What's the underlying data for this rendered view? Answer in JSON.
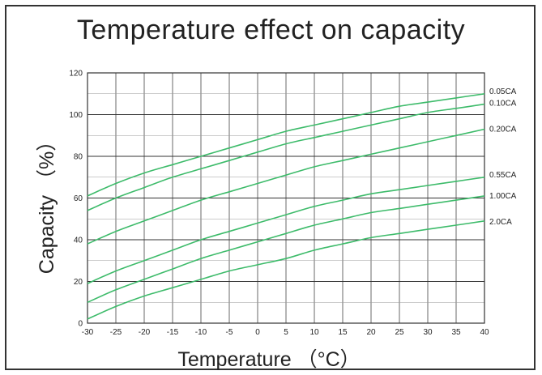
{
  "chart_data": {
    "type": "line",
    "title": "Temperature effect on capacity",
    "xlabel": "Temperature （°C）",
    "ylabel": "Capacity （%）",
    "xlim": [
      -30,
      40
    ],
    "ylim": [
      0,
      120
    ],
    "xticks": [
      -30,
      -25,
      -20,
      -15,
      -10,
      -5,
      0,
      5,
      10,
      15,
      20,
      25,
      30,
      35,
      40
    ],
    "yticks": [
      0,
      20,
      40,
      60,
      80,
      100,
      120
    ],
    "grid": true,
    "line_color": "#3dbb6a",
    "x": [
      -30,
      -25,
      -20,
      -15,
      -10,
      -5,
      0,
      5,
      10,
      15,
      20,
      25,
      30,
      35,
      40
    ],
    "series": [
      {
        "name": "0.05CA",
        "values": [
          61,
          67,
          72,
          76,
          80,
          84,
          88,
          92,
          95,
          98,
          101,
          104,
          106,
          108,
          110
        ]
      },
      {
        "name": "0.10CA",
        "values": [
          54,
          60,
          65,
          70,
          74,
          78,
          82,
          86,
          89,
          92,
          95,
          98,
          101,
          103,
          105
        ]
      },
      {
        "name": "0.20CA",
        "values": [
          38,
          44,
          49,
          54,
          59,
          63,
          67,
          71,
          75,
          78,
          81,
          84,
          87,
          90,
          93
        ]
      },
      {
        "name": "0.55CA",
        "values": [
          19,
          25,
          30,
          35,
          40,
          44,
          48,
          52,
          56,
          59,
          62,
          64,
          66,
          68,
          70
        ]
      },
      {
        "name": "1.00CA",
        "values": [
          10,
          16,
          21,
          26,
          31,
          35,
          39,
          43,
          47,
          50,
          53,
          55,
          57,
          59,
          61
        ]
      },
      {
        "name": "2.0CA",
        "values": [
          2,
          8,
          13,
          17,
          21,
          25,
          28,
          31,
          35,
          38,
          41,
          43,
          45,
          47,
          49
        ]
      }
    ]
  }
}
